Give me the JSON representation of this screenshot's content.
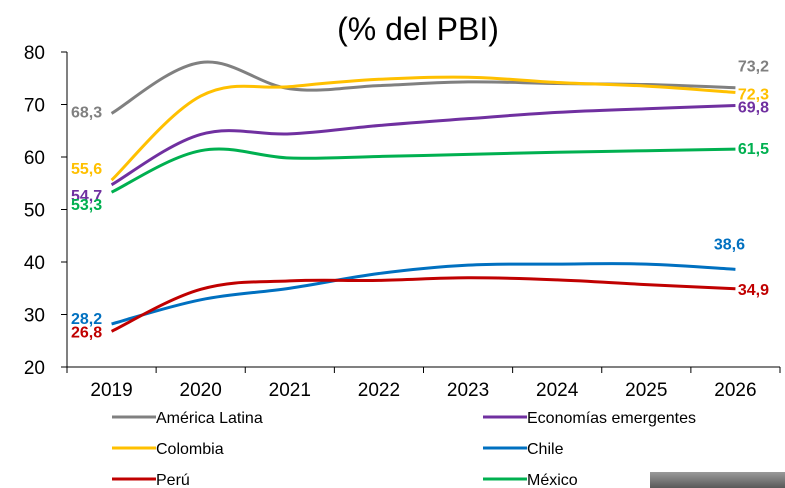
{
  "chart_data": {
    "type": "line",
    "title": "(% del PBI)",
    "categories": [
      "2019",
      "2020",
      "2021",
      "2022",
      "2023",
      "2024",
      "2025",
      "2026"
    ],
    "ylim": [
      20,
      80
    ],
    "yticks": [
      "20",
      "30",
      "40",
      "50",
      "60",
      "70",
      "80"
    ],
    "grid": false,
    "legend_position": "bottom",
    "series": [
      {
        "name": "América Latina",
        "color": "#808080",
        "values": [
          68.3,
          78.0,
          73.0,
          73.6,
          74.3,
          74.0,
          73.8,
          73.2
        ],
        "start_label": "68,3",
        "end_label": "73,2"
      },
      {
        "name": "Economías emergentes",
        "color": "#7030A0",
        "values": [
          54.7,
          64.3,
          64.4,
          66.0,
          67.3,
          68.5,
          69.2,
          69.8
        ],
        "start_label": "54,7",
        "end_label": "69,8"
      },
      {
        "name": "Colombia",
        "color": "#FFC000",
        "values": [
          55.6,
          71.6,
          73.4,
          74.8,
          75.2,
          74.2,
          73.5,
          72.3
        ],
        "start_label": "55,6",
        "end_label": "72,3"
      },
      {
        "name": "Chile",
        "color": "#0070C0",
        "values": [
          28.2,
          32.8,
          35.0,
          37.8,
          39.4,
          39.6,
          39.6,
          38.6
        ],
        "start_label": "28,2",
        "end_label": "38,6"
      },
      {
        "name": "Perú",
        "color": "#C00000",
        "values": [
          26.8,
          34.8,
          36.4,
          36.5,
          37.0,
          36.6,
          35.7,
          34.9
        ],
        "start_label": "26,8",
        "end_label": "34,9"
      },
      {
        "name": "México",
        "color": "#00B050",
        "values": [
          53.3,
          61.2,
          59.8,
          60.1,
          60.5,
          60.9,
          61.2,
          61.5
        ],
        "start_label": "53,3",
        "end_label": "61,5"
      }
    ]
  }
}
